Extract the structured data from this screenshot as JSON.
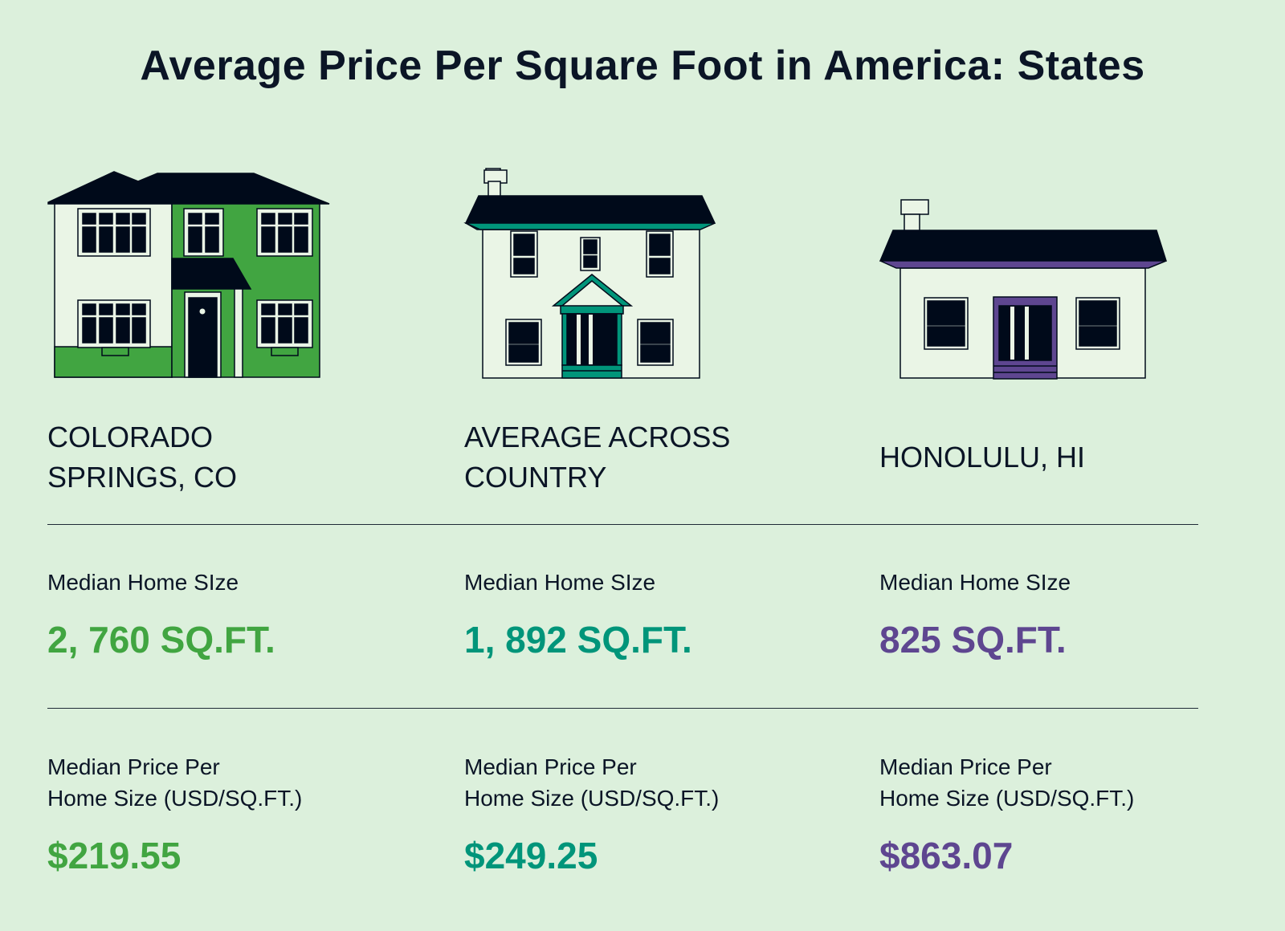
{
  "title": "Average Price Per Square Foot in America: States",
  "colors": {
    "background": "#dcf0dc",
    "ink": "#000a1a",
    "colorado": "#41a541",
    "average": "#00957a",
    "honolulu": "#5e4690"
  },
  "columns": [
    {
      "location": "COLORADO\nSPRINGS, CO",
      "size_label": "Median Home SIze",
      "size_value": "2, 760 SQ.FT.",
      "price_label": "Median Price Per\nHome Size (USD/SQ.FT.)",
      "price_value": "$219.55",
      "color": "#41a541",
      "icon": "two-story-house-icon"
    },
    {
      "location": "AVERAGE ACROSS\nCOUNTRY",
      "size_label": "Median Home SIze",
      "size_value": "1, 892 SQ.FT.",
      "price_label": "Median Price Per\nHome Size (USD/SQ.FT.)",
      "price_value": "$249.25",
      "color": "#00957a",
      "icon": "colonial-house-icon"
    },
    {
      "location": "HONOLULU, HI",
      "size_label": "Median Home SIze",
      "size_value": "825 SQ.FT.",
      "price_label": "Median Price Per\nHome Size (USD/SQ.FT.)",
      "price_value": "$863.07",
      "color": "#5e4690",
      "icon": "small-house-icon"
    }
  ]
}
